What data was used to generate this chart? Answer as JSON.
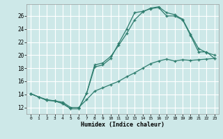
{
  "xlabel": "Humidex (Indice chaleur)",
  "bg_color": "#cde8e8",
  "grid_color": "#b8d8d8",
  "line_color": "#2e7d6e",
  "xlim": [
    -0.5,
    23.5
  ],
  "ylim": [
    11.0,
    27.8
  ],
  "xticks": [
    0,
    1,
    2,
    3,
    4,
    5,
    6,
    7,
    8,
    9,
    10,
    11,
    12,
    13,
    14,
    15,
    16,
    17,
    18,
    19,
    20,
    21,
    22,
    23
  ],
  "yticks": [
    12,
    14,
    16,
    18,
    20,
    22,
    24,
    26
  ],
  "line1_x": [
    0,
    1,
    2,
    3,
    4,
    5,
    6,
    7,
    8,
    9,
    10,
    11,
    12,
    13,
    14,
    15,
    16,
    17,
    18,
    19,
    20,
    21,
    22,
    23
  ],
  "line1_y": [
    14.1,
    13.6,
    13.1,
    13.0,
    12.6,
    11.8,
    11.8,
    14.2,
    18.2,
    18.5,
    19.5,
    21.8,
    24.0,
    26.5,
    26.7,
    27.1,
    27.3,
    26.0,
    26.0,
    25.4,
    23.0,
    20.5,
    20.5,
    19.5
  ],
  "line2_x": [
    0,
    2,
    3,
    4,
    5,
    6,
    7,
    8,
    9,
    10,
    11,
    12,
    13,
    14,
    15,
    16,
    17,
    18,
    19,
    20,
    21,
    22,
    23
  ],
  "line2_y": [
    14.1,
    13.1,
    13.0,
    12.6,
    11.8,
    11.8,
    14.2,
    18.5,
    18.8,
    19.8,
    21.5,
    23.3,
    25.4,
    26.6,
    27.2,
    27.4,
    26.5,
    26.2,
    25.5,
    23.2,
    21.0,
    20.4,
    20.0
  ],
  "line3_x": [
    0,
    1,
    2,
    3,
    4,
    5,
    6,
    7,
    8,
    9,
    10,
    11,
    12,
    13,
    14,
    15,
    16,
    17,
    18,
    19,
    20,
    21,
    22,
    23
  ],
  "line3_y": [
    14.1,
    13.6,
    13.2,
    13.0,
    12.8,
    12.0,
    12.0,
    13.2,
    14.5,
    15.0,
    15.5,
    16.0,
    16.7,
    17.3,
    18.0,
    18.7,
    19.1,
    19.4,
    19.1,
    19.3,
    19.2,
    19.3,
    19.4,
    19.5
  ]
}
